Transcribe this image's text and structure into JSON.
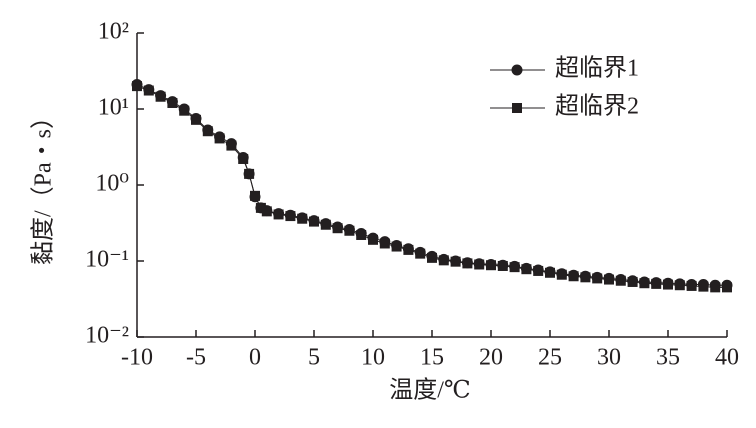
{
  "chart_data": {
    "type": "line",
    "x_label": "温度/℃",
    "y_label": "黏度/（Pa・s）",
    "x": [
      -10,
      -9,
      -8,
      -7,
      -6,
      -5,
      -4,
      -3,
      -2,
      -1,
      -0.5,
      0,
      0.5,
      1,
      2,
      3,
      4,
      5,
      6,
      7,
      8,
      9,
      10,
      11,
      12,
      13,
      14,
      15,
      16,
      17,
      18,
      19,
      20,
      21,
      22,
      23,
      24,
      25,
      26,
      27,
      28,
      29,
      30,
      31,
      32,
      33,
      34,
      35,
      36,
      37,
      38,
      39,
      40
    ],
    "series": [
      {
        "name": "超临界1",
        "color": "#231f20",
        "marker": "circle",
        "values": [
          21,
          18,
          15,
          12.5,
          10,
          7.5,
          5.3,
          4.3,
          3.5,
          2.3,
          1.4,
          0.7,
          0.5,
          0.46,
          0.42,
          0.4,
          0.37,
          0.34,
          0.31,
          0.28,
          0.26,
          0.23,
          0.2,
          0.18,
          0.16,
          0.145,
          0.13,
          0.115,
          0.105,
          0.1,
          0.095,
          0.092,
          0.09,
          0.088,
          0.085,
          0.08,
          0.076,
          0.072,
          0.068,
          0.065,
          0.063,
          0.061,
          0.059,
          0.057,
          0.055,
          0.053,
          0.052,
          0.051,
          0.05,
          0.049,
          0.049,
          0.048,
          0.048
        ]
      },
      {
        "name": "超临界2",
        "color": "#231f20",
        "marker": "square",
        "values": [
          20,
          17.5,
          14.5,
          12,
          9.5,
          7.2,
          5.1,
          4.1,
          3.3,
          2.2,
          1.4,
          0.72,
          0.5,
          0.45,
          0.41,
          0.39,
          0.36,
          0.33,
          0.3,
          0.27,
          0.25,
          0.22,
          0.19,
          0.17,
          0.155,
          0.14,
          0.125,
          0.11,
          0.102,
          0.098,
          0.093,
          0.09,
          0.088,
          0.086,
          0.083,
          0.078,
          0.074,
          0.07,
          0.066,
          0.063,
          0.061,
          0.059,
          0.057,
          0.055,
          0.053,
          0.051,
          0.05,
          0.049,
          0.048,
          0.047,
          0.046,
          0.045,
          0.045
        ]
      }
    ],
    "xlim": [
      -10,
      40
    ],
    "xticks": [
      -10,
      -5,
      0,
      5,
      10,
      15,
      20,
      25,
      30,
      35,
      40
    ],
    "ylim": [
      0.01,
      100
    ],
    "y_scale": "log",
    "yticks": [
      {
        "value": 0.01,
        "label": "10⁻²"
      },
      {
        "value": 0.1,
        "label": "10⁻¹"
      },
      {
        "value": 1,
        "label": "10⁰"
      },
      {
        "value": 10,
        "label": "10¹"
      },
      {
        "value": 100,
        "label": "10²"
      }
    ],
    "grid": false,
    "legend": "upper right"
  }
}
